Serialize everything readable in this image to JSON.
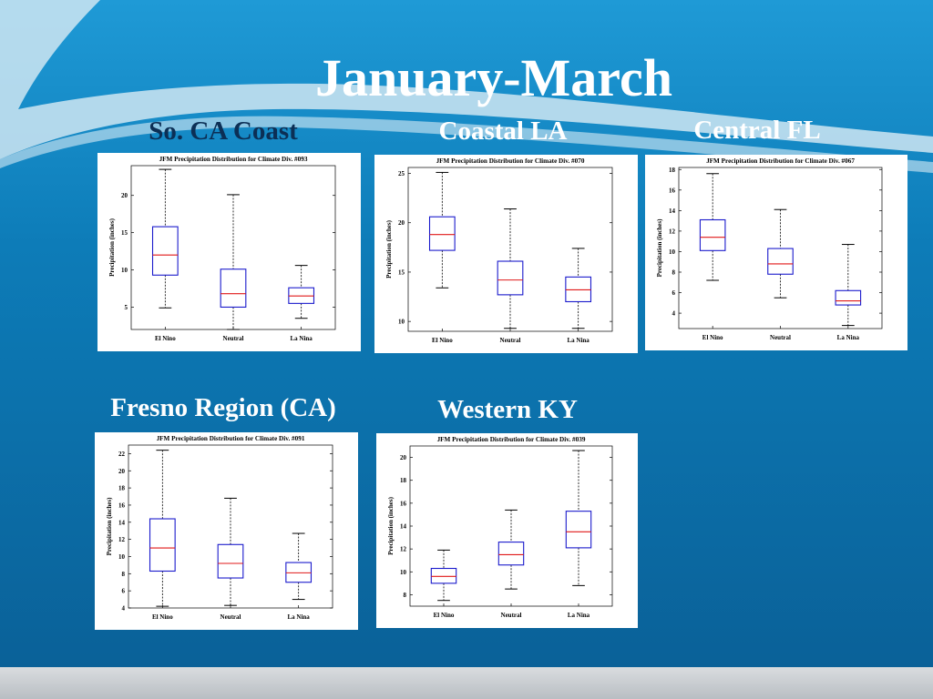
{
  "slide": {
    "title": "January-March"
  },
  "colors": {
    "background": "#0b6fa6",
    "box": "#1a1acc",
    "median": "#e01818",
    "whisker": "#000000"
  },
  "chart_data": [
    {
      "type": "boxplot",
      "region": "So. CA Coast",
      "title": "JFM Precipitation Distribution for Climate Div. #093",
      "ylabel": "Precipitation (inches)",
      "xlabel": "",
      "ylim": [
        2,
        24
      ],
      "yticks": [
        5,
        10,
        15,
        20
      ],
      "categories": [
        "El Nino",
        "Neutral",
        "La Nina"
      ],
      "boxes": [
        {
          "min": 4.9,
          "q1": 9.3,
          "median": 12.0,
          "q3": 15.8,
          "max": 23.5
        },
        {
          "min": 2.0,
          "q1": 5.0,
          "median": 6.8,
          "q3": 10.1,
          "max": 20.1
        },
        {
          "min": 3.5,
          "q1": 5.5,
          "median": 6.5,
          "q3": 7.6,
          "max": 10.6
        }
      ]
    },
    {
      "type": "boxplot",
      "region": "Coastal LA",
      "title": "JFM Precipitation Distribution for Climate Div. #070",
      "ylabel": "Precipitation (inches)",
      "xlabel": "",
      "ylim": [
        9,
        25.6
      ],
      "yticks": [
        10,
        15,
        20,
        25
      ],
      "categories": [
        "El Nino",
        "Neutral",
        "La Nina"
      ],
      "boxes": [
        {
          "min": 13.4,
          "q1": 17.2,
          "median": 18.8,
          "q3": 20.6,
          "max": 25.1
        },
        {
          "min": 9.3,
          "q1": 12.7,
          "median": 14.2,
          "q3": 16.1,
          "max": 21.4
        },
        {
          "min": 9.3,
          "q1": 12.0,
          "median": 13.2,
          "q3": 14.5,
          "max": 17.4
        }
      ]
    },
    {
      "type": "boxplot",
      "region": "Central FL",
      "title": "JFM Precipitation Distribution for Climate Div. #067",
      "ylabel": "Precipitation (inches)",
      "xlabel": "",
      "ylim": [
        2.5,
        18.2
      ],
      "yticks": [
        4,
        6,
        8,
        10,
        12,
        14,
        16,
        18
      ],
      "categories": [
        "El Nino",
        "Neutral",
        "La Nina"
      ],
      "boxes": [
        {
          "min": 7.2,
          "q1": 10.1,
          "median": 11.4,
          "q3": 13.1,
          "max": 17.6
        },
        {
          "min": 5.5,
          "q1": 7.8,
          "median": 8.8,
          "q3": 10.3,
          "max": 14.1
        },
        {
          "min": 2.8,
          "q1": 4.8,
          "median": 5.2,
          "q3": 6.2,
          "max": 10.7
        }
      ]
    },
    {
      "type": "boxplot",
      "region": "Fresno Region (CA)",
      "title": "JFM Precipitation Distribution for Climate Div. #091",
      "ylabel": "Precipitation (inches)",
      "xlabel": "",
      "ylim": [
        4,
        23
      ],
      "yticks": [
        4,
        6,
        8,
        10,
        12,
        14,
        16,
        18,
        20,
        22
      ],
      "categories": [
        "El Nino",
        "Neutral",
        "La Nina"
      ],
      "boxes": [
        {
          "min": 4.2,
          "q1": 8.3,
          "median": 11.0,
          "q3": 14.4,
          "max": 22.4
        },
        {
          "min": 4.3,
          "q1": 7.5,
          "median": 9.2,
          "q3": 11.4,
          "max": 16.8
        },
        {
          "min": 5.0,
          "q1": 7.0,
          "median": 8.1,
          "q3": 9.3,
          "max": 12.7
        }
      ]
    },
    {
      "type": "boxplot",
      "region": "Western KY",
      "title": "JFM Precipitation Distribution for Climate Div. #039",
      "ylabel": "Precipitation (inches)",
      "xlabel": "",
      "ylim": [
        7,
        21
      ],
      "yticks": [
        8,
        10,
        12,
        14,
        16,
        18,
        20
      ],
      "categories": [
        "El Nino",
        "Neutral",
        "La Nina"
      ],
      "boxes": [
        {
          "min": 7.5,
          "q1": 9.0,
          "median": 9.6,
          "q3": 10.3,
          "max": 11.9
        },
        {
          "min": 8.5,
          "q1": 10.6,
          "median": 11.5,
          "q3": 12.6,
          "max": 15.4
        },
        {
          "min": 8.8,
          "q1": 12.1,
          "median": 13.5,
          "q3": 15.3,
          "max": 20.6
        }
      ]
    }
  ]
}
